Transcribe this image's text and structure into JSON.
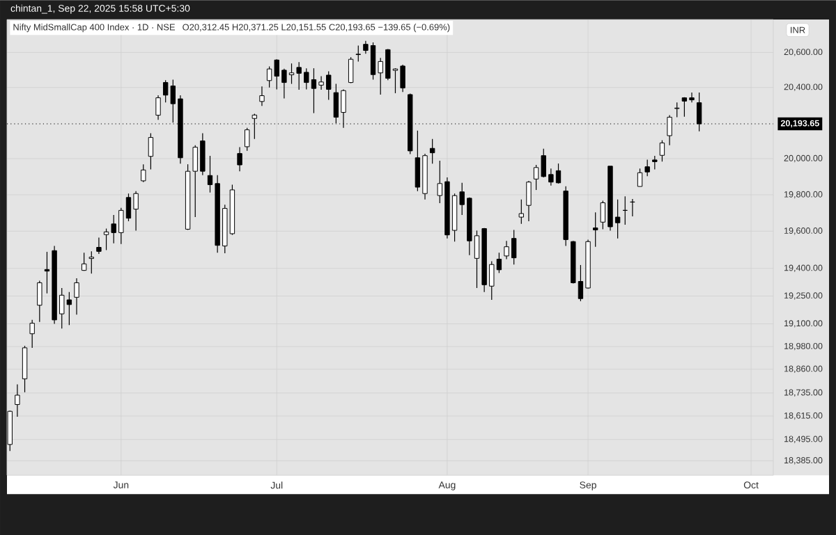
{
  "chart_data": {
    "type": "candlestick",
    "title": "Nifty MidSmallCap 400 Index · 1D · NSE",
    "subtitle": "O20,312.45  H20,371.25  L20,151.55  C20,193.65  −139.65 (−0.69%)",
    "ylabel": "INR",
    "annotations": [
      "chintan_1, Sep 22, 2025 15:58 UTC+5:30"
    ],
    "categories": [
      null,
      null,
      null,
      null,
      null,
      null,
      null,
      null,
      null,
      null,
      null,
      null,
      null,
      null,
      null,
      "Jun",
      null,
      null,
      null,
      null,
      null,
      null,
      null,
      null,
      null,
      null,
      null,
      null,
      null,
      null,
      null,
      null,
      null,
      null,
      null,
      null,
      "Jul",
      null,
      null,
      null,
      null,
      null,
      null,
      null,
      null,
      null,
      null,
      null,
      null,
      null,
      null,
      null,
      null,
      null,
      null,
      null,
      null,
      null,
      null,
      "Aug",
      null,
      null,
      null,
      null,
      null,
      null,
      null,
      null,
      null,
      null,
      null,
      null,
      null,
      null,
      null,
      null,
      null,
      null,
      "Sep",
      null,
      null,
      null,
      null,
      null,
      null,
      null,
      null,
      null,
      null,
      null,
      null,
      null,
      null,
      null,
      null,
      null,
      null,
      null,
      null,
      null,
      "Oct",
      null,
      null,
      null
    ],
    "ohlc": [
      [
        18468,
        18643,
        18435,
        18640
      ],
      [
        18674,
        18780,
        18612,
        18724
      ],
      [
        18809,
        18983,
        18739,
        18973
      ],
      [
        19048,
        19120,
        18973,
        19105
      ],
      [
        19200,
        19331,
        19110,
        19321
      ],
      [
        19393,
        19489,
        19264,
        19383
      ],
      [
        19496,
        19519,
        19100,
        19122
      ],
      [
        19152,
        19293,
        19076,
        19254
      ],
      [
        19227,
        19271,
        19093,
        19205
      ],
      [
        19242,
        19346,
        19150,
        19321
      ],
      [
        19389,
        19485,
        19386,
        19422
      ],
      [
        19451,
        19492,
        19371,
        19459
      ],
      [
        19511,
        19566,
        19477,
        19492
      ],
      [
        19582,
        19615,
        19497,
        19596
      ],
      [
        19640,
        19689,
        19533,
        19593
      ],
      [
        19593,
        19730,
        19529,
        19714
      ],
      [
        19785,
        19808,
        19655,
        19671
      ],
      [
        19723,
        19819,
        19604,
        19808
      ],
      [
        19879,
        19970,
        19870,
        19938
      ],
      [
        20011,
        20140,
        19941,
        20117
      ],
      [
        20242,
        20355,
        20216,
        20341
      ],
      [
        20428,
        20441,
        20314,
        20356
      ],
      [
        20408,
        20444,
        20201,
        20307
      ],
      [
        20335,
        20355,
        19975,
        20003
      ],
      [
        19611,
        19970,
        19608,
        19929
      ],
      [
        19930,
        20073,
        19679,
        20062
      ],
      [
        20098,
        20140,
        19911,
        19930
      ],
      [
        19907,
        20014,
        19812,
        19858
      ],
      [
        19865,
        19908,
        19485,
        19522
      ],
      [
        19519,
        19745,
        19479,
        19725
      ],
      [
        19588,
        19855,
        19581,
        19828
      ],
      [
        20027,
        20062,
        19930,
        19967
      ],
      [
        20065,
        20171,
        20042,
        20160
      ],
      [
        20224,
        20251,
        20109,
        20243
      ],
      [
        20320,
        20405,
        20295,
        20353
      ],
      [
        20439,
        20519,
        20400,
        20505
      ],
      [
        20556,
        20561,
        20389,
        20464
      ],
      [
        20498,
        20506,
        20337,
        20428
      ],
      [
        20472,
        20537,
        20420,
        20483
      ],
      [
        20514,
        20545,
        20386,
        20480
      ],
      [
        20486,
        20509,
        20389,
        20428
      ],
      [
        20444,
        20509,
        20254,
        20394
      ],
      [
        20413,
        20464,
        20386,
        20431
      ],
      [
        20470,
        20491,
        20329,
        20389
      ],
      [
        20370,
        20420,
        20197,
        20231
      ],
      [
        20258,
        20389,
        20171,
        20382
      ],
      [
        20428,
        20572,
        20425,
        20561
      ],
      [
        20587,
        20639,
        20548,
        20590
      ],
      [
        20647,
        20667,
        20592,
        20611
      ],
      [
        20639,
        20658,
        20444,
        20473
      ],
      [
        20483,
        20569,
        20359,
        20548
      ],
      [
        20616,
        20619,
        20441,
        20452
      ],
      [
        20497,
        20509,
        20367,
        20505
      ],
      [
        20522,
        20530,
        20374,
        20397
      ],
      [
        20359,
        20364,
        20024,
        20042
      ],
      [
        20003,
        20155,
        19819,
        19842
      ],
      [
        19808,
        20026,
        19775,
        20015
      ],
      [
        20056,
        20109,
        19975,
        20031
      ],
      [
        19797,
        19990,
        19753,
        19862
      ],
      [
        19874,
        19896,
        19563,
        19581
      ],
      [
        19603,
        19808,
        19545,
        19796
      ],
      [
        19818,
        19867,
        19689,
        19748
      ],
      [
        19781,
        19785,
        19470,
        19548
      ],
      [
        19452,
        19604,
        19293,
        19575
      ],
      [
        19615,
        19618,
        19271,
        19310
      ],
      [
        19303,
        19437,
        19227,
        19418
      ],
      [
        19448,
        19485,
        19374,
        19390
      ],
      [
        19467,
        19548,
        19448,
        19516
      ],
      [
        19563,
        19607,
        19418,
        19456
      ],
      [
        19679,
        19775,
        19640,
        19696
      ],
      [
        19744,
        19877,
        19655,
        19870
      ],
      [
        19889,
        19966,
        19827,
        19951
      ],
      [
        20015,
        20054,
        19896,
        19901
      ],
      [
        19914,
        19945,
        19852,
        19870
      ],
      [
        19936,
        19973,
        19862,
        19867
      ],
      [
        19821,
        19848,
        19519,
        19556
      ],
      [
        19545,
        19548,
        19317,
        19321
      ],
      [
        19329,
        19415,
        19220,
        19235
      ],
      [
        19293,
        19556,
        19290,
        19545
      ],
      [
        19619,
        19704,
        19516,
        19607
      ],
      [
        19652,
        19766,
        19610,
        19756
      ],
      [
        19959,
        19960,
        19604,
        19625
      ],
      [
        19679,
        19775,
        19563,
        19647
      ],
      [
        19716,
        19793,
        19637,
        19714
      ],
      [
        19759,
        19778,
        19682,
        19762
      ],
      [
        19847,
        19945,
        19845,
        19922
      ],
      [
        19956,
        19996,
        19904,
        19926
      ],
      [
        19993,
        20014,
        19941,
        19984
      ],
      [
        20017,
        20101,
        19985,
        20086
      ],
      [
        20127,
        20243,
        20073,
        20231
      ],
      [
        20280,
        20314,
        20231,
        20283
      ],
      [
        20341,
        20344,
        20234,
        20322
      ],
      [
        20341,
        20370,
        20314,
        20329
      ],
      [
        20312.45,
        20371.25,
        20151.55,
        20193.65
      ],
      null,
      null,
      null,
      null,
      null,
      null,
      null,
      null,
      null,
      null
    ],
    "log": true,
    "ylim": [
      18310,
      20790
    ],
    "yticks": [
      {
        "value": 18385,
        "label": "18,385.00"
      },
      {
        "value": 18495,
        "label": "18,495.00"
      },
      {
        "value": 18615,
        "label": "18,615.00"
      },
      {
        "value": 18735,
        "label": "18,735.00"
      },
      {
        "value": 18860,
        "label": "18,860.00"
      },
      {
        "value": 18980,
        "label": "18,980.00"
      },
      {
        "value": 19100,
        "label": "19,100.00"
      },
      {
        "value": 19250,
        "label": "19,250.00"
      },
      {
        "value": 19400,
        "label": "19,400.00"
      },
      {
        "value": 19600,
        "label": "19,600.00"
      },
      {
        "value": 19800,
        "label": "19,800.00"
      },
      {
        "value": 20000,
        "label": "20,000.00"
      },
      {
        "value": 20400,
        "label": "20,400.00"
      },
      {
        "value": 20600,
        "label": "20,600.00"
      }
    ],
    "grid": true,
    "ref_lines": [
      {
        "axis": "y",
        "value": 20193.65,
        "label": "20,193.65",
        "line_style": "dotted"
      }
    ]
  }
}
